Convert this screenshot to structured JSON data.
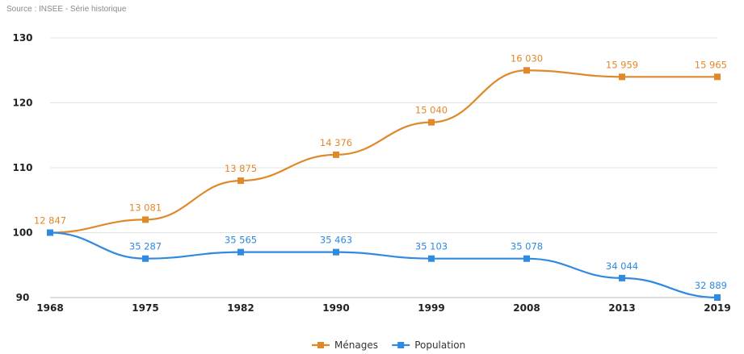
{
  "source_note": "Source : INSEE - Série historique",
  "colors": {
    "menages": "#e0892b",
    "population": "#2f8ae0",
    "grid": "#e3e3e3"
  },
  "chart_data": {
    "type": "line",
    "title": "",
    "xlabel": "",
    "ylabel": "",
    "categories": [
      "1968",
      "1975",
      "1982",
      "1990",
      "1999",
      "2008",
      "2013",
      "2019"
    ],
    "ylim": [
      90,
      130
    ],
    "yticks": [
      90,
      100,
      110,
      120,
      130
    ],
    "grid": true,
    "legend_position": "bottom-center",
    "series": [
      {
        "name": "Ménages",
        "color": "#e0892b",
        "values": [
          100,
          102,
          108,
          112,
          117,
          125,
          124,
          124
        ],
        "labels": [
          "12 847",
          "13 081",
          "13 875",
          "14 376",
          "15 040",
          "16 030",
          "15 959",
          "15 965"
        ]
      },
      {
        "name": "Population",
        "color": "#2f8ae0",
        "values": [
          100,
          96,
          97,
          97,
          96,
          96,
          93,
          90
        ],
        "labels": [
          "",
          "35 287",
          "35 565",
          "35 463",
          "35 103",
          "35 078",
          "34 044",
          "32 889"
        ]
      }
    ]
  }
}
